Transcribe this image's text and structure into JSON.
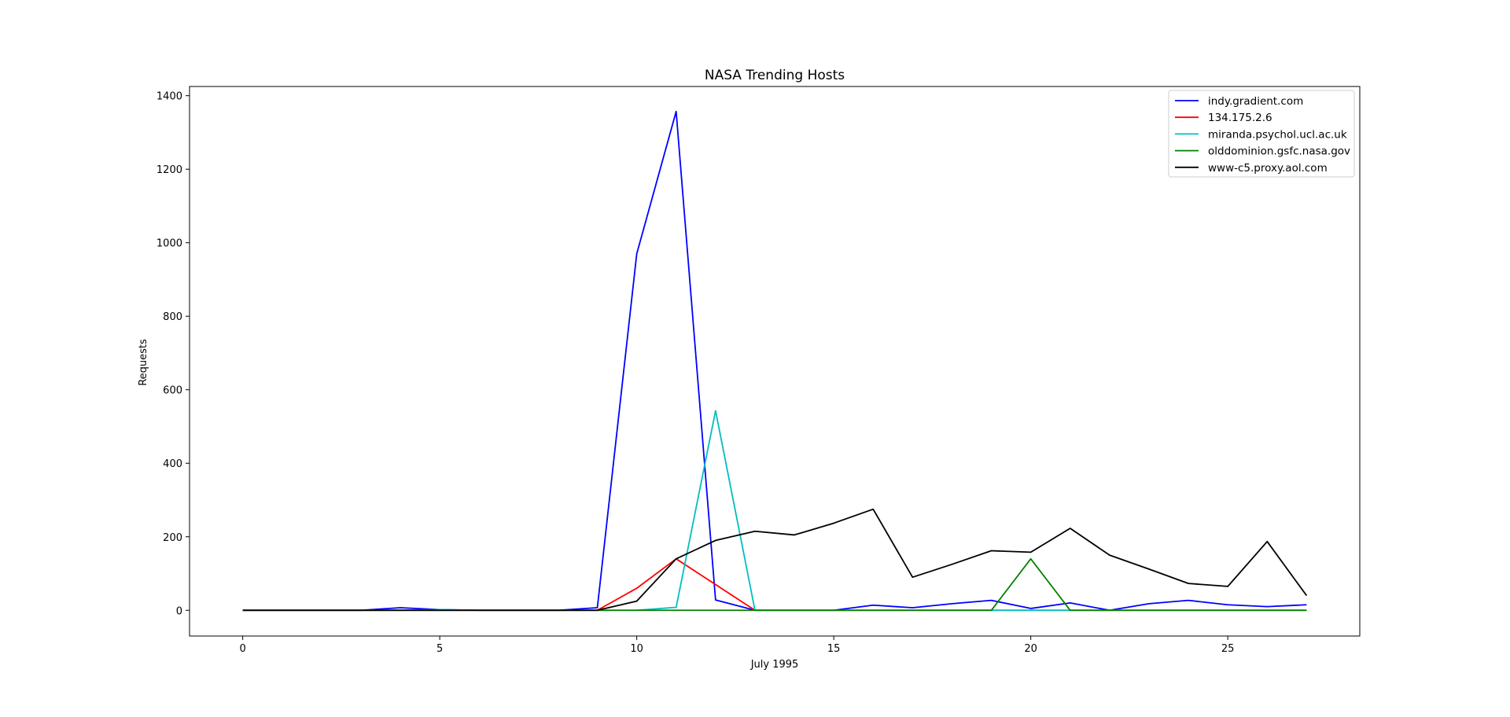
{
  "chart_data": {
    "type": "line",
    "title": "NASA Trending Hosts",
    "xlabel": "July 1995",
    "ylabel": "Requests",
    "xlim": [
      -1.35,
      28.35
    ],
    "ylim": [
      -70,
      1425
    ],
    "xticks": [
      0,
      5,
      10,
      15,
      20,
      25
    ],
    "yticks": [
      0,
      200,
      400,
      600,
      800,
      1000,
      1200,
      1400
    ],
    "grid": false,
    "legend_position": "top-right",
    "x": [
      0,
      1,
      2,
      3,
      4,
      5,
      6,
      7,
      8,
      9,
      10,
      11,
      12,
      13,
      14,
      15,
      16,
      17,
      18,
      19,
      20,
      21,
      22,
      23,
      24,
      25,
      26,
      27
    ],
    "series": [
      {
        "name": "indy.gradient.com",
        "color": "#0000ff",
        "values": [
          0,
          0,
          0,
          0,
          7,
          2,
          0,
          0,
          0,
          7,
          970,
          1357,
          28,
          0,
          0,
          0,
          14,
          7,
          18,
          27,
          5,
          20,
          0,
          18,
          27,
          15,
          10,
          15
        ]
      },
      {
        "name": "134.175.2.6",
        "color": "#ff0000",
        "values": [
          0,
          0,
          0,
          0,
          0,
          0,
          0,
          0,
          0,
          0,
          60,
          140,
          70,
          0,
          0,
          0,
          0,
          0,
          0,
          0,
          0,
          0,
          0,
          0,
          0,
          0,
          0,
          0
        ]
      },
      {
        "name": "miranda.psychol.ucl.ac.uk",
        "color": "#00bfbf",
        "values": [
          0,
          0,
          0,
          0,
          0,
          2,
          0,
          0,
          0,
          0,
          0,
          8,
          543,
          0,
          0,
          0,
          0,
          0,
          0,
          0,
          0,
          0,
          0,
          0,
          0,
          0,
          0,
          0
        ]
      },
      {
        "name": "olddominion.gsfc.nasa.gov",
        "color": "#008000",
        "values": [
          0,
          0,
          0,
          0,
          0,
          0,
          0,
          0,
          0,
          0,
          0,
          0,
          0,
          0,
          0,
          0,
          0,
          0,
          0,
          0,
          140,
          0,
          0,
          0,
          0,
          0,
          0,
          0
        ]
      },
      {
        "name": "www-c5.proxy.aol.com",
        "color": "#000000",
        "values": [
          0,
          0,
          0,
          0,
          0,
          0,
          0,
          0,
          0,
          0,
          25,
          140,
          190,
          215,
          205,
          237,
          275,
          90,
          125,
          162,
          158,
          223,
          150,
          112,
          73,
          65,
          187,
          40
        ]
      }
    ]
  }
}
